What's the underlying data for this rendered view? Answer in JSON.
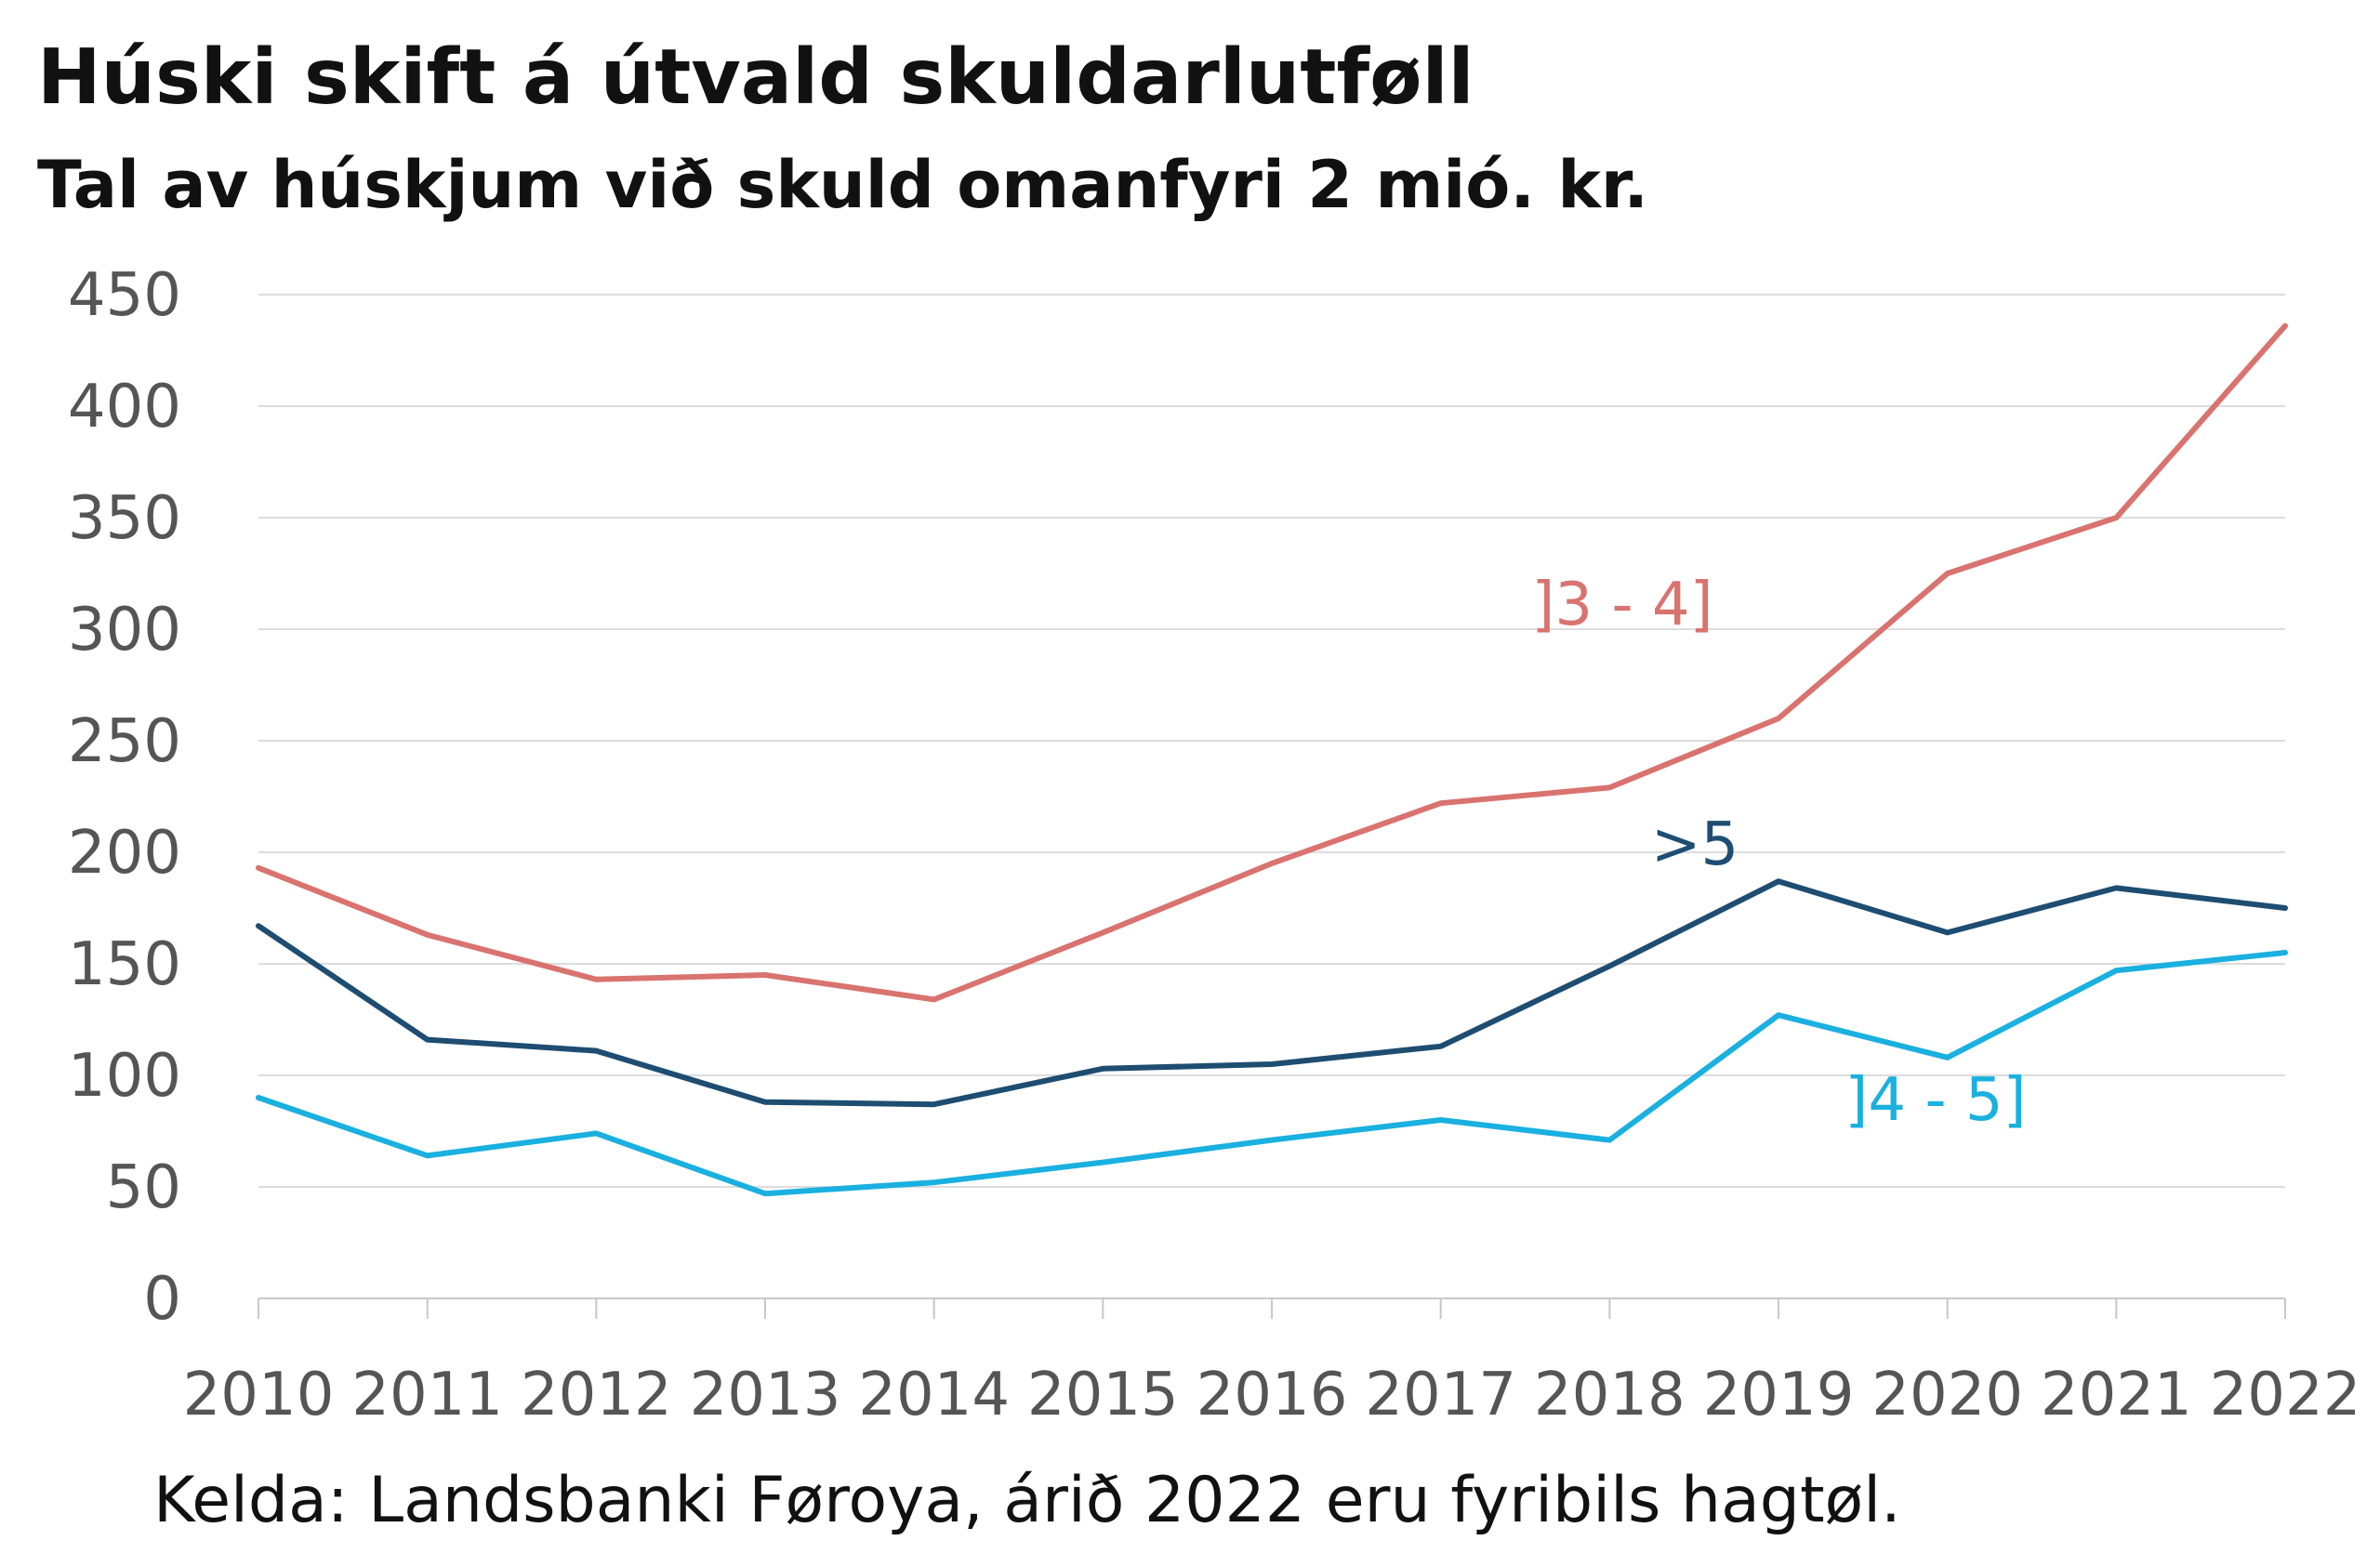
{
  "chart_data": {
    "type": "line",
    "title": "Húski skift á útvald skuldarlutføll",
    "subtitle": "Tal av húskjum við skuld omanfyri 2 mió. kr.",
    "source": "Kelda: Landsbanki Føroya, árið 2022 eru fyribils hagtøl.",
    "xlabel": "",
    "ylabel": "",
    "x": [
      "2010",
      "2011",
      "2012",
      "2013",
      "2014",
      "2015",
      "2016",
      "2017",
      "2018",
      "2019",
      "2020",
      "2021",
      "2022"
    ],
    "ylim": [
      0,
      450
    ],
    "yticks": [
      "0",
      "50",
      "100",
      "150",
      "200",
      "250",
      "300",
      "350",
      "400",
      "450"
    ],
    "grid": "horizontal",
    "legend": "inline labels",
    "series": [
      {
        "name": "]3 - 4]",
        "color": "#d9736f",
        "values": [
          193,
          163,
          143,
          145,
          134,
          164,
          195,
          222,
          229,
          260,
          325,
          350,
          436
        ]
      },
      {
        "name": ">5",
        "color": "#1e4d72",
        "values": [
          167,
          116,
          111,
          88,
          87,
          103,
          105,
          113,
          149,
          187,
          164,
          184,
          175
        ]
      },
      {
        "name": "]4 - 5]",
        "color": "#1ab0e0",
        "values": [
          90,
          64,
          74,
          47,
          52,
          61,
          71,
          80,
          71,
          127,
          108,
          147,
          155
        ]
      }
    ]
  }
}
